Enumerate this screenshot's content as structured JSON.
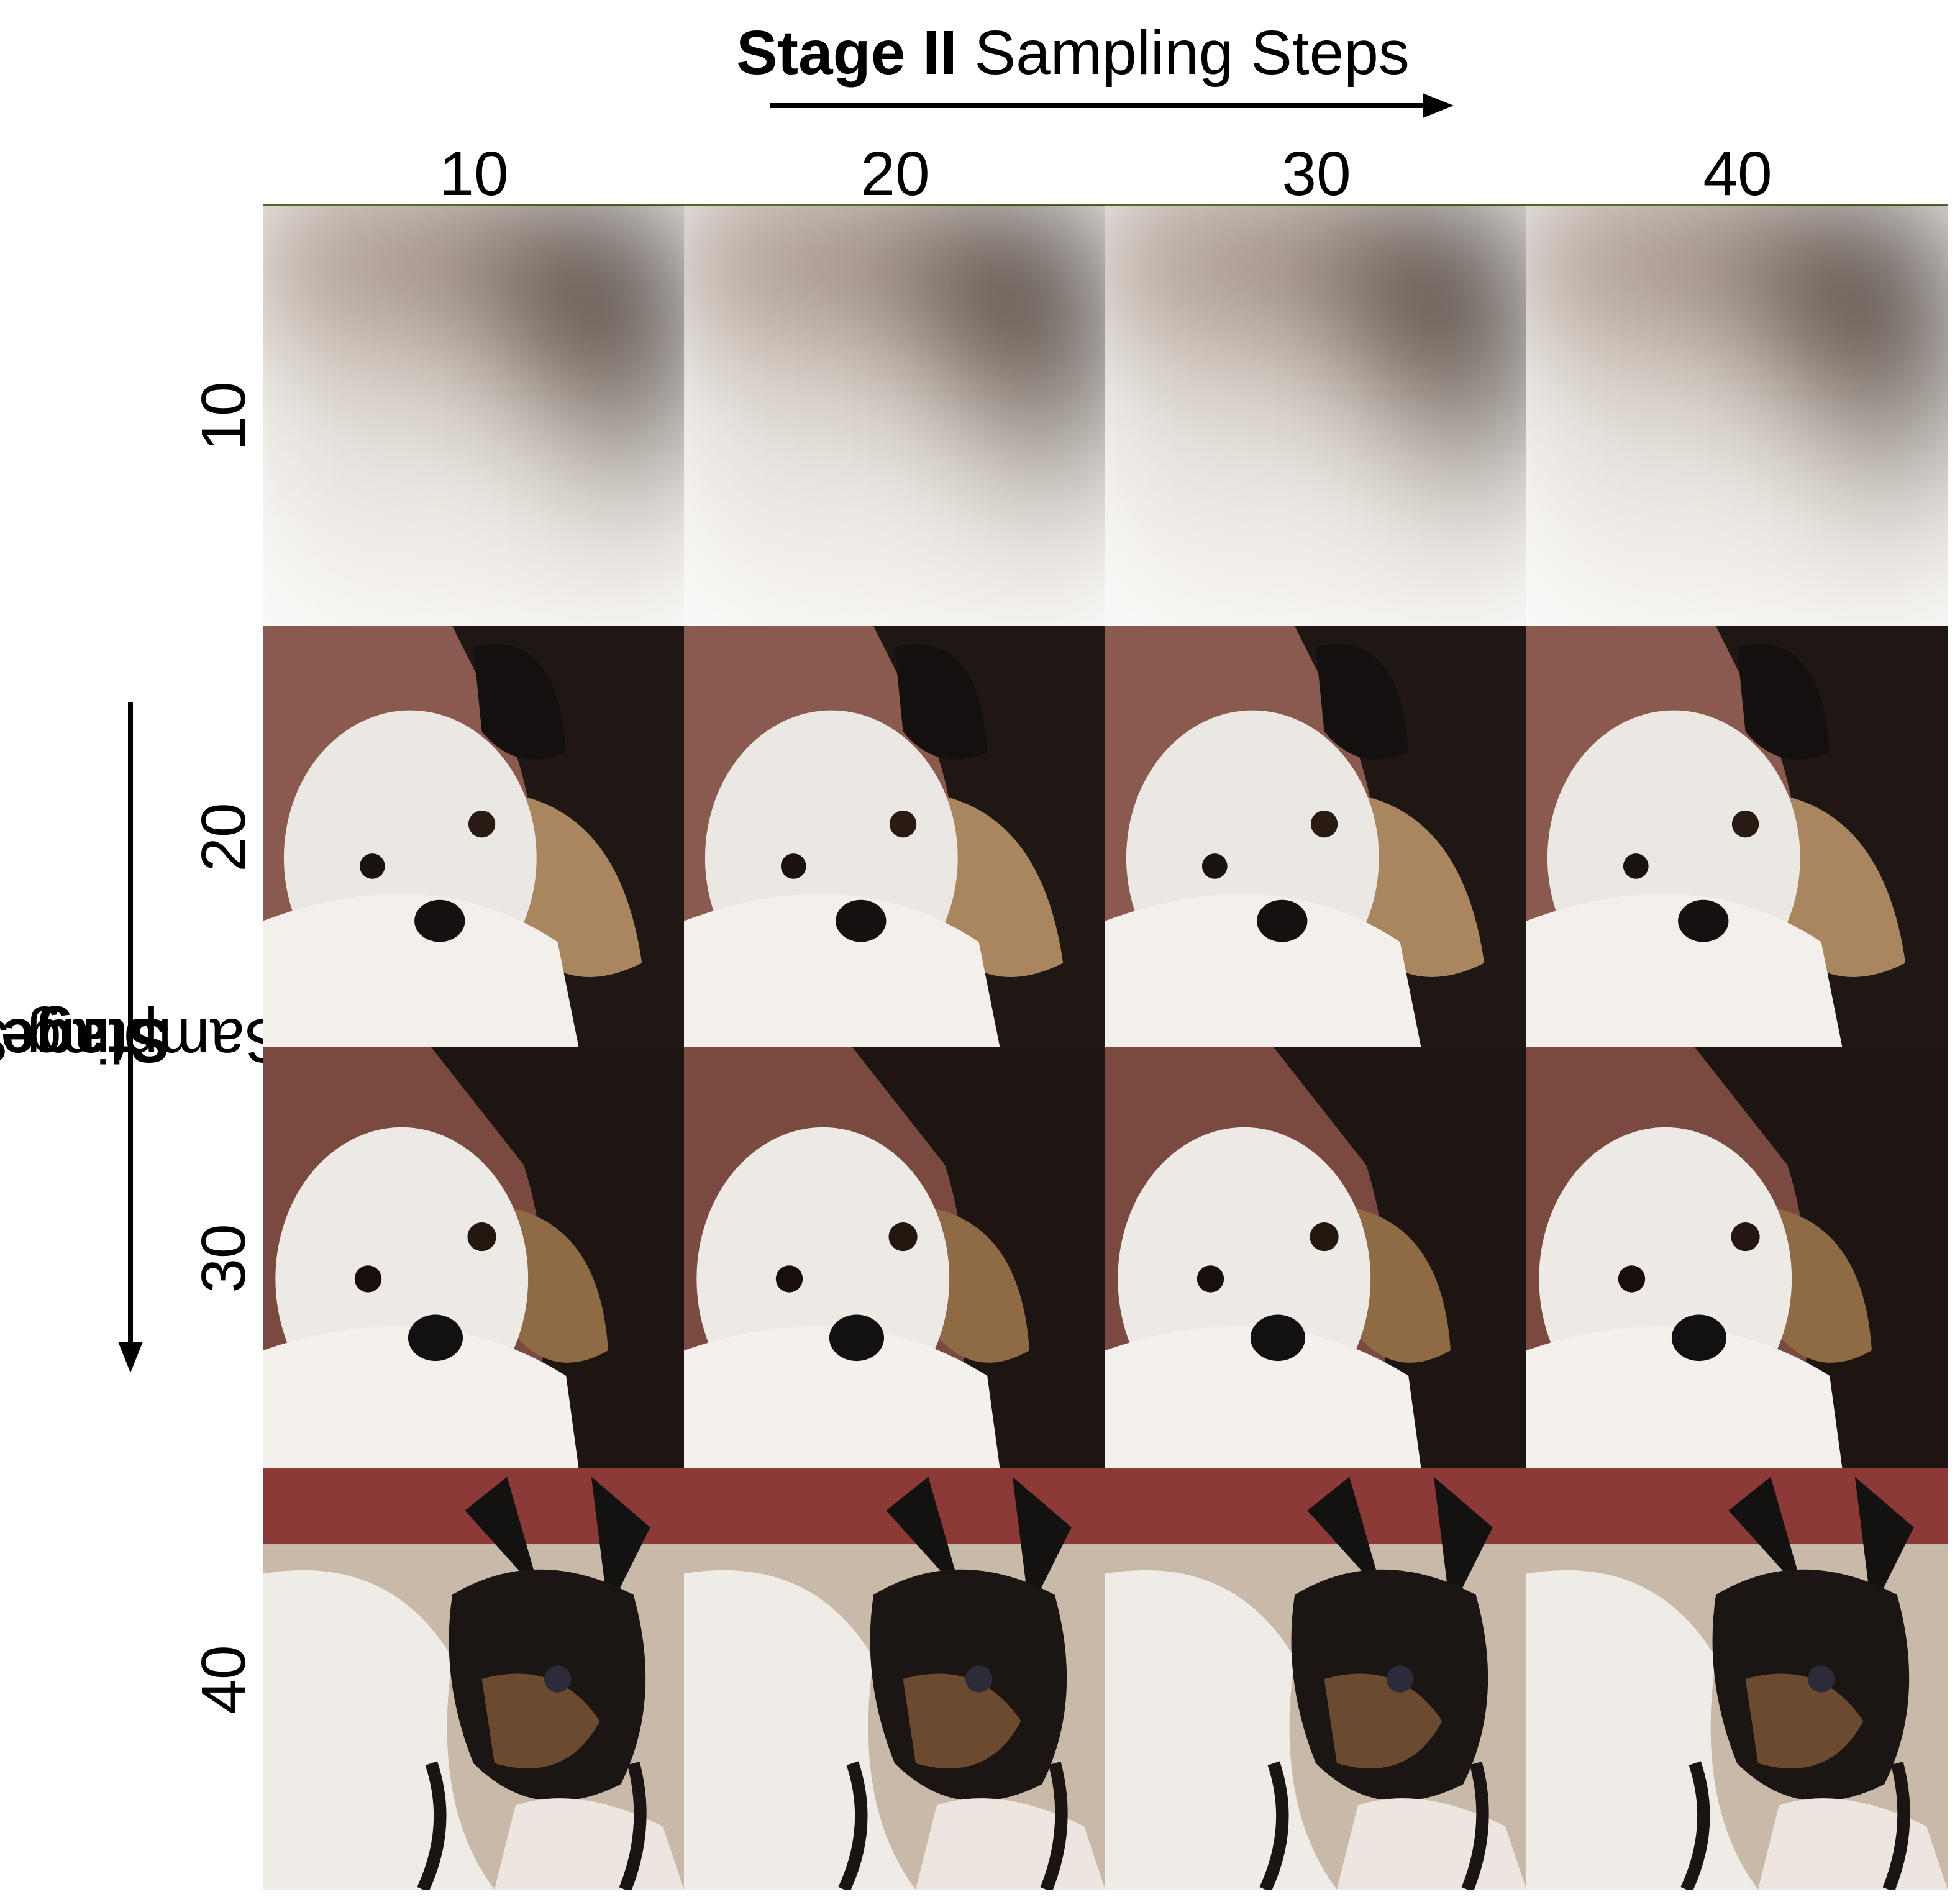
{
  "title_top": {
    "bold": "Stage II",
    "rest": " Sampling Steps"
  },
  "title_side": {
    "bold": "Stage I",
    "rest": " Sampling Steps"
  },
  "columns": [
    "10",
    "20",
    "30",
    "40"
  ],
  "rows": [
    "10",
    "20",
    "30",
    "40"
  ],
  "colors": {
    "bg_warm": "#8a5a4f",
    "bg_red": "#8c3a38",
    "bg_brown": "#6b4a3a",
    "fur_white": "#ece8e3",
    "fur_dark": "#1d1712",
    "fur_tan": "#9b7550"
  }
}
